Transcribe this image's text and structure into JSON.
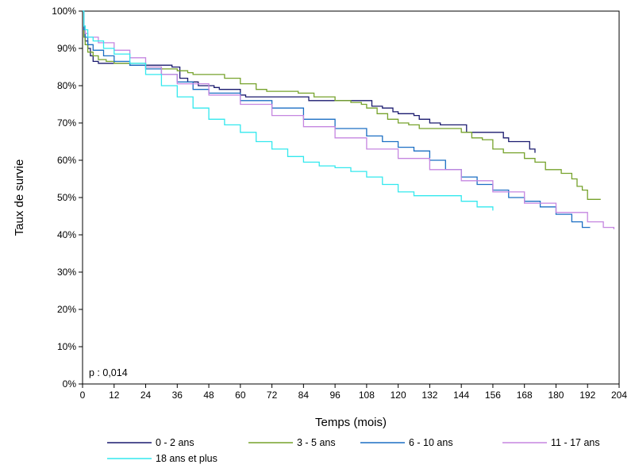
{
  "chart_data": {
    "type": "line",
    "xlabel": "Temps (mois)",
    "ylabel": "Taux de survie",
    "xlim": [
      0,
      204
    ],
    "ylim": [
      0,
      100
    ],
    "x_ticks": [
      "0",
      "12",
      "24",
      "36",
      "48",
      "60",
      "72",
      "84",
      "96",
      "108",
      "120",
      "132",
      "144",
      "156",
      "168",
      "180",
      "192",
      "204"
    ],
    "y_ticks": [
      "0%",
      "10%",
      "20%",
      "30%",
      "40%",
      "50%",
      "60%",
      "70%",
      "80%",
      "90%",
      "100%"
    ],
    "annotation": "p : 0,014",
    "grid": false,
    "legend_position": "bottom",
    "series": [
      {
        "name": "0 - 2 ans",
        "color": "#1a1a6e",
        "points": [
          [
            0,
            100
          ],
          [
            0.5,
            95
          ],
          [
            1,
            92
          ],
          [
            2,
            90
          ],
          [
            3,
            88
          ],
          [
            4,
            86.5
          ],
          [
            6,
            86
          ],
          [
            12,
            86
          ],
          [
            18,
            85.5
          ],
          [
            24,
            85.5
          ],
          [
            30,
            85.5
          ],
          [
            34,
            85
          ],
          [
            37,
            82
          ],
          [
            40,
            81
          ],
          [
            44,
            80
          ],
          [
            48,
            80
          ],
          [
            50,
            79.5
          ],
          [
            52,
            79
          ],
          [
            58,
            79
          ],
          [
            60,
            77.5
          ],
          [
            62,
            77
          ],
          [
            84,
            77
          ],
          [
            86,
            76
          ],
          [
            108,
            76
          ],
          [
            110,
            74.5
          ],
          [
            114,
            74
          ],
          [
            118,
            73
          ],
          [
            120,
            72.5
          ],
          [
            126,
            72
          ],
          [
            128,
            71
          ],
          [
            132,
            70
          ],
          [
            136,
            69.5
          ],
          [
            144,
            69.5
          ],
          [
            146,
            67.5
          ],
          [
            156,
            67.5
          ],
          [
            160,
            66
          ],
          [
            162,
            65
          ],
          [
            168,
            65
          ],
          [
            170,
            63
          ],
          [
            172,
            62
          ]
        ]
      },
      {
        "name": "3 - 5 ans",
        "color": "#76a22b",
        "points": [
          [
            0,
            100
          ],
          [
            0.5,
            93
          ],
          [
            1,
            91
          ],
          [
            2,
            89
          ],
          [
            4,
            88
          ],
          [
            6,
            87
          ],
          [
            9,
            86.5
          ],
          [
            12,
            86
          ],
          [
            24,
            85
          ],
          [
            30,
            84.5
          ],
          [
            36,
            84
          ],
          [
            40,
            83.5
          ],
          [
            42,
            83
          ],
          [
            48,
            83
          ],
          [
            54,
            82
          ],
          [
            60,
            80.5
          ],
          [
            66,
            79
          ],
          [
            70,
            78.5
          ],
          [
            82,
            78
          ],
          [
            88,
            77
          ],
          [
            96,
            76
          ],
          [
            102,
            75.5
          ],
          [
            106,
            75
          ],
          [
            108,
            74
          ],
          [
            112,
            72.5
          ],
          [
            116,
            71
          ],
          [
            120,
            70
          ],
          [
            124,
            69.5
          ],
          [
            128,
            68.5
          ],
          [
            140,
            68.5
          ],
          [
            144,
            67.5
          ],
          [
            148,
            66
          ],
          [
            152,
            65.5
          ],
          [
            156,
            63
          ],
          [
            160,
            62
          ],
          [
            168,
            60.5
          ],
          [
            172,
            59.5
          ],
          [
            176,
            57.5
          ],
          [
            182,
            56.5
          ],
          [
            186,
            55
          ],
          [
            188,
            53
          ],
          [
            190,
            52
          ],
          [
            192,
            49.5
          ],
          [
            197,
            49.5
          ]
        ]
      },
      {
        "name": "6 - 10 ans",
        "color": "#1c6fc4",
        "points": [
          [
            0,
            100
          ],
          [
            0.5,
            95
          ],
          [
            1,
            93
          ],
          [
            2,
            91
          ],
          [
            4,
            89.5
          ],
          [
            8,
            88
          ],
          [
            12,
            86.5
          ],
          [
            18,
            85.5
          ],
          [
            24,
            84.5
          ],
          [
            30,
            83
          ],
          [
            36,
            81
          ],
          [
            42,
            79
          ],
          [
            48,
            78
          ],
          [
            60,
            76
          ],
          [
            72,
            74
          ],
          [
            84,
            71
          ],
          [
            96,
            68.5
          ],
          [
            108,
            66.5
          ],
          [
            114,
            65
          ],
          [
            120,
            63.5
          ],
          [
            126,
            62.5
          ],
          [
            132,
            60
          ],
          [
            138,
            57.5
          ],
          [
            144,
            55.5
          ],
          [
            150,
            53.5
          ],
          [
            156,
            52
          ],
          [
            162,
            50
          ],
          [
            168,
            49
          ],
          [
            174,
            47.5
          ],
          [
            180,
            45.5
          ],
          [
            186,
            43.5
          ],
          [
            190,
            42
          ],
          [
            193,
            42
          ]
        ]
      },
      {
        "name": "11 - 17 ans",
        "color": "#c586e0",
        "points": [
          [
            0,
            100
          ],
          [
            0.5,
            96
          ],
          [
            1,
            94
          ],
          [
            2,
            93
          ],
          [
            6,
            91.5
          ],
          [
            12,
            89.5
          ],
          [
            18,
            87.5
          ],
          [
            24,
            85
          ],
          [
            30,
            83
          ],
          [
            36,
            80.5
          ],
          [
            48,
            77.5
          ],
          [
            60,
            75
          ],
          [
            72,
            72
          ],
          [
            84,
            69
          ],
          [
            96,
            66
          ],
          [
            108,
            63
          ],
          [
            120,
            60.5
          ],
          [
            132,
            57.5
          ],
          [
            144,
            54.5
          ],
          [
            156,
            51.5
          ],
          [
            168,
            48.5
          ],
          [
            180,
            46
          ],
          [
            192,
            43.5
          ],
          [
            198,
            42
          ],
          [
            202,
            41.5
          ]
        ]
      },
      {
        "name": "18 ans et plus",
        "color": "#33e8ee",
        "points": [
          [
            0,
            100
          ],
          [
            0.5,
            96
          ],
          [
            1,
            95
          ],
          [
            2,
            93
          ],
          [
            4,
            92
          ],
          [
            8,
            90
          ],
          [
            12,
            88.5
          ],
          [
            18,
            86
          ],
          [
            24,
            83
          ],
          [
            30,
            80
          ],
          [
            36,
            77
          ],
          [
            42,
            74
          ],
          [
            48,
            71
          ],
          [
            54,
            69.5
          ],
          [
            60,
            67.5
          ],
          [
            66,
            65
          ],
          [
            72,
            63
          ],
          [
            78,
            61
          ],
          [
            84,
            59.5
          ],
          [
            90,
            58.5
          ],
          [
            96,
            58
          ],
          [
            102,
            57
          ],
          [
            108,
            55.5
          ],
          [
            114,
            53.5
          ],
          [
            120,
            51.5
          ],
          [
            126,
            50.5
          ],
          [
            132,
            50.5
          ],
          [
            140,
            50.5
          ],
          [
            144,
            49
          ],
          [
            150,
            47.5
          ],
          [
            156,
            46.5
          ]
        ]
      }
    ]
  }
}
